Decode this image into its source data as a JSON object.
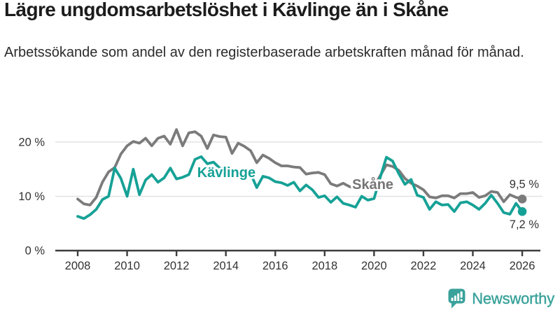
{
  "title": "Lägre ungdomsarbetslöshet i Kävlinge än i Skåne",
  "subtitle": "Arbetssökande som andel av den registerbaserade arbetskraften månad för månad.",
  "branding": {
    "name": "Newsworthy",
    "color": "#3aa29b"
  },
  "chart_data": {
    "type": "line",
    "title": "Lägre ungdomsarbetslöshet i Kävlinge än i Skåne",
    "unit": "%",
    "x_start": 2008,
    "x_step_years": 0.25,
    "x_end": 2026,
    "ylim": [
      0,
      23.5
    ],
    "xlim": [
      2007.1,
      2026.8
    ],
    "grid": "horizontal",
    "grid_color": "#e3e3e3",
    "axis_color": "#3d3d3d",
    "tick_label_color": "#333333",
    "yticks": [
      {
        "value": 0,
        "label": "0 %"
      },
      {
        "value": 10,
        "label": "10 %"
      },
      {
        "value": 20,
        "label": "20 %"
      }
    ],
    "xticks": [
      2008,
      2010,
      2012,
      2014,
      2016,
      2018,
      2020,
      2022,
      2024,
      2026
    ],
    "series": [
      {
        "key": "skane",
        "name": "Skåne",
        "color": "#7b7b7b",
        "label_color": "#757575",
        "end_value": 9.5,
        "end_label": "9,5 %",
        "end_label_position": "above",
        "inline_label": {
          "x": 2019.95,
          "y": 12.25
        },
        "values": [
          9.5,
          8.6,
          8.4,
          9.8,
          12.6,
          14.5,
          15.3,
          17.8,
          19.3,
          20.1,
          19.8,
          20.7,
          19.3,
          20.7,
          21.1,
          19.6,
          22.3,
          19.3,
          21.7,
          21.9,
          21.1,
          18.8,
          21.3,
          21.0,
          20.9,
          17.9,
          19.8,
          19.2,
          18.4,
          16.2,
          17.6,
          17.0,
          16.2,
          15.6,
          15.6,
          15.4,
          15.3,
          14.1,
          14.3,
          14.4,
          14.0,
          12.3,
          11.9,
          12.4,
          11.8,
          11.5,
          11.9,
          11.6,
          11.8,
          13.8,
          15.8,
          15.5,
          14.8,
          13.3,
          12.4,
          11.9,
          11.2,
          9.9,
          9.7,
          10.1,
          10.1,
          9.7,
          10.5,
          10.5,
          10.7,
          9.8,
          10.1,
          10.9,
          10.7,
          9.0,
          10.3,
          9.8,
          9.5
        ]
      },
      {
        "key": "kavlinge",
        "name": "Kävlinge",
        "color": "#16a196",
        "label_color": "#16a196",
        "end_value": 7.2,
        "end_label": "7,2 %",
        "end_label_position": "below",
        "inline_label": {
          "x": 2014.02,
          "y": 14.45
        },
        "values": [
          6.3,
          5.9,
          6.6,
          7.6,
          9.4,
          10.0,
          15.2,
          13.3,
          10.0,
          15.0,
          10.3,
          13.0,
          14.0,
          12.6,
          13.4,
          15.2,
          13.2,
          13.5,
          14.0,
          16.8,
          17.3,
          16.0,
          16.3,
          15.2,
          14.8,
          13.8,
          14.5,
          14.0,
          14.2,
          11.6,
          13.7,
          13.4,
          12.7,
          12.5,
          12.0,
          12.6,
          11.0,
          12.1,
          11.2,
          9.8,
          10.1,
          8.9,
          9.9,
          8.7,
          8.4,
          8.0,
          10.0,
          9.3,
          9.6,
          13.5,
          17.2,
          16.5,
          14.2,
          12.2,
          13.1,
          10.2,
          9.8,
          7.6,
          9.0,
          8.4,
          8.5,
          7.2,
          8.8,
          9.0,
          8.4,
          7.6,
          8.7,
          10.2,
          8.7,
          7.0,
          6.7,
          8.7,
          7.2
        ]
      }
    ]
  }
}
